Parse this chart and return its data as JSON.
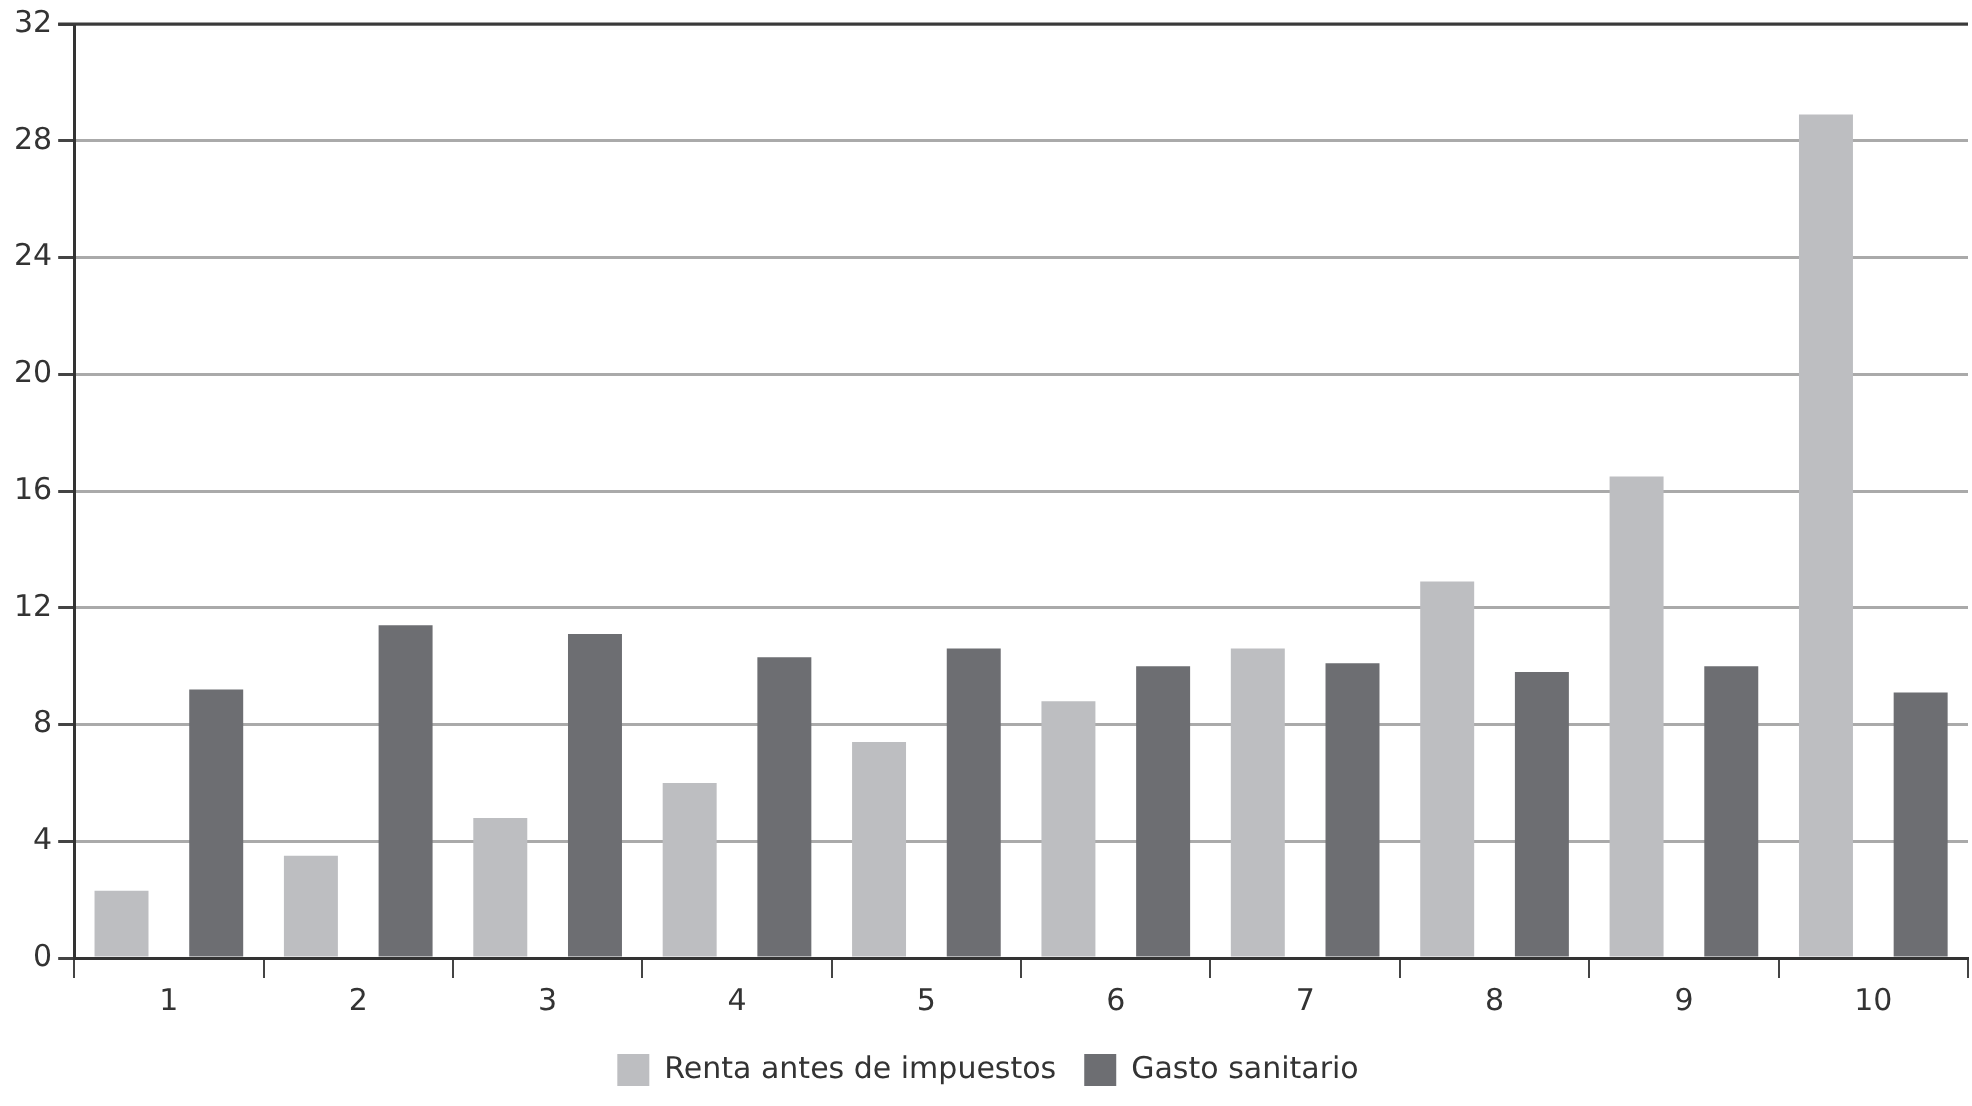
{
  "chart_data": {
    "type": "bar",
    "categories": [
      "1",
      "2",
      "3",
      "4",
      "5",
      "6",
      "7",
      "8",
      "9",
      "10"
    ],
    "series": [
      {
        "name": "Renta antes de impuestos",
        "color": "#bdbec1",
        "values": [
          2.3,
          3.5,
          4.8,
          6.0,
          7.4,
          8.8,
          10.6,
          12.9,
          16.5,
          28.9
        ]
      },
      {
        "name": "Gasto sanitario",
        "color": "#6d6e72",
        "values": [
          9.2,
          11.4,
          11.1,
          10.3,
          10.6,
          10.0,
          10.1,
          9.8,
          10.0,
          9.1
        ]
      }
    ],
    "ylim": [
      0,
      32
    ],
    "yticks": [
      0,
      4,
      8,
      12,
      16,
      20,
      24,
      28,
      32
    ],
    "grid": "y",
    "legend": "bottom"
  }
}
